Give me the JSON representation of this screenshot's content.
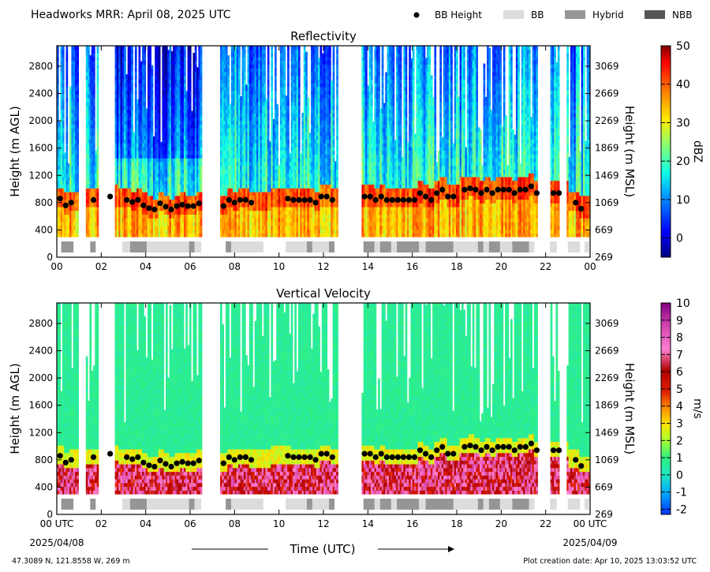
{
  "header": {
    "title": "Headworks MRR:  April 08, 2025 UTC",
    "legend": [
      {
        "label": "BB Height",
        "kind": "dot",
        "color": "#000000"
      },
      {
        "label": "BB",
        "kind": "box",
        "color": "#dcdcdc"
      },
      {
        "label": "Hybrid",
        "kind": "box",
        "color": "#969696"
      },
      {
        "label": "NBB",
        "kind": "box",
        "color": "#555555"
      }
    ]
  },
  "footer": {
    "location": "47.3089 N, 121.8558 W, 269 m",
    "creation": "Plot creation date: Apr 10, 2025 13:03:52 UTC"
  },
  "chart_data": [
    {
      "type": "heatmap",
      "title": "Reflectivity",
      "xlabel": "",
      "ylabel": "Height (m AGL)",
      "y2label": "Height (m MSL)",
      "xlim": [
        0,
        24
      ],
      "ylim": [
        0,
        3100
      ],
      "x_ticks": [
        "00",
        "02",
        "04",
        "06",
        "08",
        "10",
        "12",
        "14",
        "16",
        "18",
        "20",
        "22",
        "00"
      ],
      "y_ticks": [
        0,
        400,
        800,
        1200,
        1600,
        2000,
        2400,
        2800
      ],
      "y2_ticks": [
        269,
        669,
        1069,
        1469,
        1869,
        2269,
        2669,
        3069
      ],
      "colorbar": {
        "label": "dBZ",
        "min": -5,
        "max": 50,
        "ticks": [
          0,
          10,
          20,
          30,
          40,
          50
        ]
      }
    },
    {
      "type": "heatmap",
      "title": "Vertical Velocity",
      "xlabel": "Time (UTC)",
      "ylabel": "Height (m AGL)",
      "y2label": "Height (m MSL)",
      "xlim": [
        0,
        24
      ],
      "ylim": [
        0,
        3100
      ],
      "x_ticks": [
        "00 UTC",
        "02",
        "04",
        "06",
        "08",
        "10",
        "12",
        "14",
        "16",
        "18",
        "20",
        "22",
        "00 UTC"
      ],
      "x_date_left": "2025/04/08",
      "x_date_right": "2025/04/09",
      "y_ticks": [
        0,
        400,
        800,
        1200,
        1600,
        2000,
        2400,
        2800
      ],
      "y2_ticks": [
        269,
        669,
        1069,
        1469,
        1869,
        2269,
        2669,
        3069
      ],
      "colorbar": {
        "label": "m/s",
        "min": -2.3,
        "max": 10,
        "ticks": [
          -2,
          -1,
          0,
          1,
          2,
          3,
          4,
          5,
          6,
          7,
          8,
          9,
          10
        ]
      }
    }
  ],
  "data_gaps_hours": [
    [
      0.95,
      1.3
    ],
    [
      1.8,
      2.55
    ],
    [
      6.5,
      7.3
    ],
    [
      12.6,
      13.65
    ],
    [
      21.6,
      22.2
    ],
    [
      22.6,
      22.9
    ]
  ],
  "bb_height_points": [
    [
      0.15,
      860
    ],
    [
      0.4,
      760
    ],
    [
      0.65,
      800
    ],
    [
      1.65,
      840
    ],
    [
      2.4,
      890
    ],
    [
      3.15,
      840
    ],
    [
      3.4,
      810
    ],
    [
      3.65,
      840
    ],
    [
      3.9,
      760
    ],
    [
      4.15,
      720
    ],
    [
      4.4,
      700
    ],
    [
      4.65,
      790
    ],
    [
      4.9,
      740
    ],
    [
      5.15,
      700
    ],
    [
      5.4,
      750
    ],
    [
      5.65,
      770
    ],
    [
      5.9,
      750
    ],
    [
      6.15,
      750
    ],
    [
      6.4,
      790
    ],
    [
      7.5,
      750
    ],
    [
      7.75,
      840
    ],
    [
      8.0,
      800
    ],
    [
      8.25,
      840
    ],
    [
      8.5,
      840
    ],
    [
      8.75,
      800
    ],
    [
      10.4,
      860
    ],
    [
      10.65,
      840
    ],
    [
      10.9,
      840
    ],
    [
      11.15,
      840
    ],
    [
      11.4,
      840
    ],
    [
      11.65,
      800
    ],
    [
      11.9,
      890
    ],
    [
      12.15,
      890
    ],
    [
      12.4,
      840
    ],
    [
      13.85,
      890
    ],
    [
      14.1,
      890
    ],
    [
      14.35,
      840
    ],
    [
      14.6,
      890
    ],
    [
      14.85,
      840
    ],
    [
      15.1,
      840
    ],
    [
      15.35,
      840
    ],
    [
      15.6,
      840
    ],
    [
      15.85,
      840
    ],
    [
      16.1,
      840
    ],
    [
      16.35,
      940
    ],
    [
      16.6,
      890
    ],
    [
      16.85,
      840
    ],
    [
      17.1,
      940
    ],
    [
      17.35,
      990
    ],
    [
      17.6,
      890
    ],
    [
      17.85,
      890
    ],
    [
      18.35,
      990
    ],
    [
      18.6,
      1010
    ],
    [
      18.85,
      990
    ],
    [
      19.1,
      940
    ],
    [
      19.35,
      990
    ],
    [
      19.6,
      940
    ],
    [
      19.85,
      990
    ],
    [
      20.1,
      990
    ],
    [
      20.35,
      990
    ],
    [
      20.6,
      940
    ],
    [
      20.85,
      990
    ],
    [
      21.1,
      990
    ],
    [
      21.35,
      1040
    ],
    [
      21.6,
      940
    ],
    [
      22.35,
      940
    ],
    [
      22.6,
      940
    ],
    [
      23.35,
      800
    ],
    [
      23.6,
      710
    ]
  ],
  "bb_flags": [
    {
      "start": 0.2,
      "end": 0.75,
      "kind": "hybrid"
    },
    {
      "start": 1.5,
      "end": 1.75,
      "kind": "hybrid"
    },
    {
      "start": 2.95,
      "end": 3.3,
      "kind": "bb"
    },
    {
      "start": 3.3,
      "end": 4.05,
      "kind": "hybrid"
    },
    {
      "start": 4.05,
      "end": 5.95,
      "kind": "bb"
    },
    {
      "start": 5.95,
      "end": 6.2,
      "kind": "hybrid"
    },
    {
      "start": 6.2,
      "end": 6.5,
      "kind": "bb"
    },
    {
      "start": 7.6,
      "end": 7.85,
      "kind": "hybrid"
    },
    {
      "start": 7.85,
      "end": 9.3,
      "kind": "bb"
    },
    {
      "start": 10.3,
      "end": 11.25,
      "kind": "bb"
    },
    {
      "start": 11.25,
      "end": 11.5,
      "kind": "hybrid"
    },
    {
      "start": 11.5,
      "end": 12.25,
      "kind": "bb"
    },
    {
      "start": 12.25,
      "end": 12.5,
      "kind": "hybrid"
    },
    {
      "start": 13.8,
      "end": 14.3,
      "kind": "hybrid"
    },
    {
      "start": 14.3,
      "end": 14.55,
      "kind": "bb"
    },
    {
      "start": 14.55,
      "end": 15.05,
      "kind": "hybrid"
    },
    {
      "start": 15.05,
      "end": 15.3,
      "kind": "bb"
    },
    {
      "start": 15.3,
      "end": 16.3,
      "kind": "hybrid"
    },
    {
      "start": 16.3,
      "end": 16.6,
      "kind": "bb"
    },
    {
      "start": 16.6,
      "end": 17.85,
      "kind": "hybrid"
    },
    {
      "start": 17.85,
      "end": 18.95,
      "kind": "bb"
    },
    {
      "start": 18.95,
      "end": 19.2,
      "kind": "hybrid"
    },
    {
      "start": 19.2,
      "end": 19.45,
      "kind": "bb"
    },
    {
      "start": 19.45,
      "end": 19.95,
      "kind": "hybrid"
    },
    {
      "start": 19.95,
      "end": 20.5,
      "kind": "bb"
    },
    {
      "start": 20.5,
      "end": 21.25,
      "kind": "hybrid"
    },
    {
      "start": 21.25,
      "end": 21.5,
      "kind": "bb"
    },
    {
      "start": 22.2,
      "end": 22.5,
      "kind": "bb"
    },
    {
      "start": 23.0,
      "end": 23.55,
      "kind": "bb"
    },
    {
      "start": 23.75,
      "end": 23.95,
      "kind": "bb"
    }
  ]
}
